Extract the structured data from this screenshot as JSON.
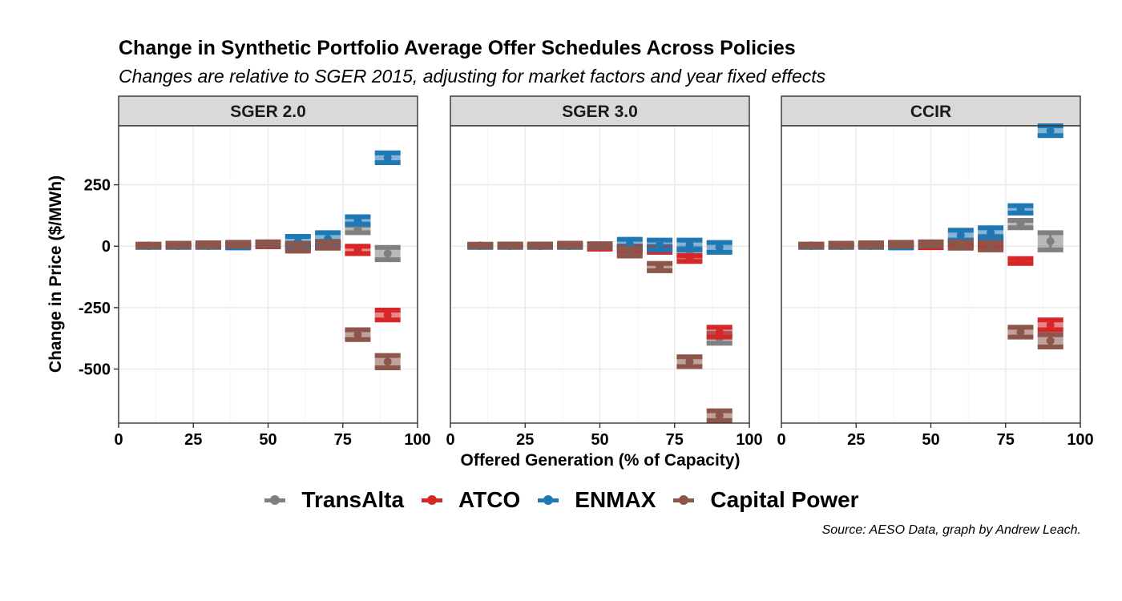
{
  "chart_data": {
    "type": "scatter",
    "title": "Change in Synthetic Portfolio Average Offer Schedules Across Policies",
    "subtitle": "Changes are relative to SGER 2015, adjusting for market factors and year fixed effects",
    "xlabel": "Offered Generation (% of Capacity)",
    "ylabel": "Change in Price ($/MWh)",
    "caption": "Source: AESO Data, graph by Andrew Leach.",
    "xlim": [
      0,
      100
    ],
    "ylim": [
      -720,
      490
    ],
    "xticks": [
      0,
      25,
      50,
      75,
      100
    ],
    "xtick_labels": [
      "0",
      "25",
      "50",
      "75",
      "100"
    ],
    "yticks": [
      250,
      0,
      -250,
      -500
    ],
    "ytick_labels": [
      "250",
      "0",
      "-250",
      "-500"
    ],
    "grid": true,
    "legend_position": "bottom",
    "facets": [
      "SGER 2.0",
      "SGER 3.0",
      "CCIR"
    ],
    "series": [
      {
        "name": "TransAlta",
        "color": "#808080",
        "values": {
          "SGER 2.0": [
            [
              10,
              2,
              7,
              -3
            ],
            [
              20,
              3,
              9,
              -3
            ],
            [
              30,
              3,
              9,
              -3
            ],
            [
              40,
              5,
              12,
              -2
            ],
            [
              50,
              6,
              14,
              -2
            ],
            [
              60,
              5,
              12,
              -2
            ],
            [
              70,
              10,
              20,
              0
            ],
            [
              80,
              70,
              85,
              55
            ],
            [
              90,
              -30,
              -5,
              -55
            ]
          ],
          "SGER 3.0": [
            [
              10,
              2,
              7,
              -3
            ],
            [
              20,
              2,
              7,
              -3
            ],
            [
              30,
              1,
              6,
              -4
            ],
            [
              40,
              2,
              7,
              -3
            ],
            [
              50,
              1,
              6,
              -4
            ],
            [
              60,
              -10,
              0,
              -20
            ],
            [
              70,
              -10,
              0,
              -20
            ],
            [
              80,
              -25,
              -10,
              -40
            ],
            [
              90,
              -375,
              -355,
              -395
            ]
          ],
          "CCIR": [
            [
              10,
              3,
              8,
              -2
            ],
            [
              20,
              3,
              9,
              -3
            ],
            [
              30,
              4,
              10,
              -2
            ],
            [
              40,
              5,
              12,
              -2
            ],
            [
              50,
              8,
              15,
              1
            ],
            [
              60,
              10,
              20,
              0
            ],
            [
              70,
              30,
              40,
              20
            ],
            [
              80,
              90,
              105,
              75
            ],
            [
              90,
              20,
              55,
              -15
            ]
          ]
        }
      },
      {
        "name": "ATCO",
        "color": "#d62728",
        "values": {
          "SGER 2.0": [
            [
              10,
              3,
              8,
              -2
            ],
            [
              20,
              4,
              10,
              -2
            ],
            [
              30,
              3,
              9,
              -3
            ],
            [
              40,
              4,
              10,
              -2
            ],
            [
              50,
              5,
              12,
              -2
            ],
            [
              60,
              3,
              10,
              -4
            ],
            [
              70,
              5,
              15,
              -5
            ],
            [
              80,
              -15,
              0,
              -30
            ],
            [
              90,
              -280,
              -260,
              -300
            ]
          ],
          "SGER 3.0": [
            [
              10,
              2,
              7,
              -3
            ],
            [
              20,
              2,
              7,
              -3
            ],
            [
              30,
              1,
              6,
              -4
            ],
            [
              40,
              2,
              7,
              -3
            ],
            [
              50,
              -5,
              2,
              -12
            ],
            [
              60,
              -10,
              0,
              -20
            ],
            [
              70,
              -15,
              -5,
              -25
            ],
            [
              80,
              -50,
              -38,
              -62
            ],
            [
              90,
              -350,
              -330,
              -370
            ]
          ],
          "CCIR": [
            [
              10,
              3,
              8,
              -2
            ],
            [
              20,
              4,
              10,
              -2
            ],
            [
              30,
              4,
              10,
              -2
            ],
            [
              40,
              5,
              12,
              -2
            ],
            [
              50,
              2,
              10,
              -6
            ],
            [
              60,
              10,
              20,
              0
            ],
            [
              70,
              5,
              15,
              -5
            ],
            [
              80,
              -60,
              -50,
              -70
            ],
            [
              90,
              -320,
              -300,
              -340
            ]
          ]
        }
      },
      {
        "name": "ENMAX",
        "color": "#1f77b4",
        "values": {
          "SGER 2.0": [
            [
              10,
              1,
              7,
              -5
            ],
            [
              20,
              1,
              7,
              -5
            ],
            [
              30,
              1,
              7,
              -5
            ],
            [
              40,
              0,
              7,
              -7
            ],
            [
              50,
              8,
              15,
              1
            ],
            [
              60,
              20,
              40,
              0
            ],
            [
              70,
              30,
              55,
              5
            ],
            [
              80,
              105,
              120,
              90
            ],
            [
              90,
              360,
              380,
              340
            ]
          ],
          "SGER 3.0": [
            [
              10,
              1,
              7,
              -5
            ],
            [
              20,
              1,
              7,
              -5
            ],
            [
              30,
              1,
              7,
              -5
            ],
            [
              40,
              1,
              7,
              -5
            ],
            [
              50,
              1,
              7,
              -5
            ],
            [
              60,
              8,
              28,
              -12
            ],
            [
              70,
              5,
              25,
              -15
            ],
            [
              80,
              5,
              25,
              -15
            ],
            [
              90,
              -5,
              15,
              -25
            ]
          ],
          "CCIR": [
            [
              10,
              1,
              7,
              -5
            ],
            [
              20,
              1,
              7,
              -5
            ],
            [
              30,
              1,
              7,
              -5
            ],
            [
              40,
              0,
              7,
              -7
            ],
            [
              50,
              8,
              15,
              1
            ],
            [
              60,
              45,
              65,
              25
            ],
            [
              70,
              55,
              75,
              35
            ],
            [
              80,
              150,
              165,
              135
            ],
            [
              90,
              470,
              490,
              450
            ]
          ]
        }
      },
      {
        "name": "Capital Power",
        "color": "#8c564b",
        "values": {
          "SGER 2.0": [
            [
              10,
              3,
              8,
              -2
            ],
            [
              20,
              5,
              12,
              -2
            ],
            [
              30,
              6,
              14,
              -2
            ],
            [
              40,
              8,
              16,
              0
            ],
            [
              50,
              10,
              18,
              2
            ],
            [
              60,
              -5,
              10,
              -20
            ],
            [
              70,
              5,
              18,
              -8
            ],
            [
              80,
              -360,
              -340,
              -380
            ],
            [
              90,
              -470,
              -445,
              -495
            ]
          ],
          "SGER 3.0": [
            [
              10,
              3,
              8,
              -2
            ],
            [
              20,
              3,
              9,
              -3
            ],
            [
              30,
              3,
              9,
              -3
            ],
            [
              40,
              5,
              12,
              -2
            ],
            [
              50,
              3,
              10,
              -4
            ],
            [
              60,
              -25,
              -10,
              -40
            ],
            [
              70,
              -85,
              -70,
              -100
            ],
            [
              80,
              -470,
              -450,
              -490
            ],
            [
              90,
              -690,
              -670,
              -710
            ]
          ],
          "CCIR": [
            [
              10,
              3,
              8,
              -2
            ],
            [
              20,
              5,
              12,
              -2
            ],
            [
              30,
              6,
              14,
              -2
            ],
            [
              40,
              8,
              16,
              0
            ],
            [
              50,
              10,
              18,
              2
            ],
            [
              60,
              5,
              18,
              -8
            ],
            [
              70,
              0,
              15,
              -15
            ],
            [
              80,
              -350,
              -330,
              -370
            ],
            [
              90,
              -385,
              -360,
              -410
            ]
          ]
        }
      }
    ]
  }
}
